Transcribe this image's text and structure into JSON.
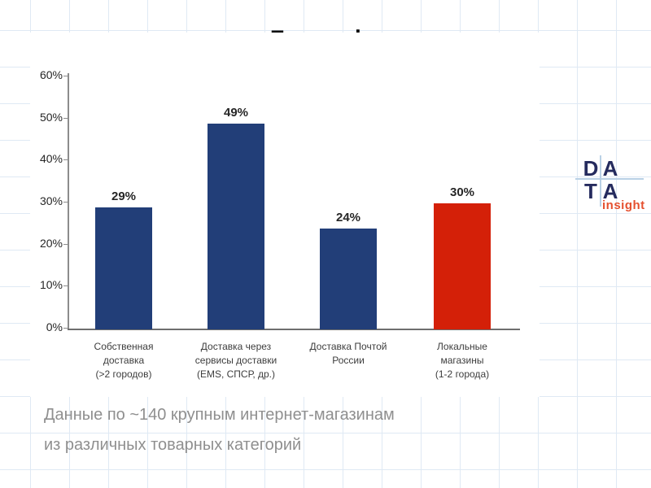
{
  "slide": {
    "title": "География доставки",
    "footer_line1": "Данные по ~140 крупным интернет-магазинам",
    "footer_line2": "из различных товарных категорий"
  },
  "logo": {
    "letters": [
      "D",
      "A",
      "T",
      "A"
    ],
    "word": "insight",
    "letter_color": "#252b5e",
    "word_color": "#e5502f",
    "cross_line_color": "#b9d1e6"
  },
  "chart_data": {
    "type": "bar",
    "title": "География доставки",
    "categories": [
      "Собственная доставка (>2 городов)",
      "Доставка через сервисы доставки (EMS, СПСР, др.)",
      "Доставка Почтой России",
      "Локальные магазины (1-2 города)"
    ],
    "category_lines": [
      [
        "Собственная",
        "доставка",
        "(>2 городов)"
      ],
      [
        "Доставка через",
        "сервисы доставки",
        "(EMS, СПСР, др.)"
      ],
      [
        "Доставка Почтой",
        "России"
      ],
      [
        "Локальные",
        "магазины",
        "(1-2 города)"
      ]
    ],
    "values": [
      29,
      49,
      24,
      30
    ],
    "value_labels": [
      "29%",
      "49%",
      "24%",
      "30%"
    ],
    "bar_colors": [
      "#223e78",
      "#223e78",
      "#223e78",
      "#d42008"
    ],
    "ylabel": "",
    "xlabel": "",
    "ylim": [
      0,
      60
    ],
    "ytick_labels": [
      "60%",
      "50%",
      "40%",
      "30%",
      "20%",
      "10%",
      "0%"
    ],
    "grid": false,
    "legend": null
  },
  "colors": {
    "bar_blue": "#223e78",
    "bar_red": "#d42008",
    "background_grid": "#dfe9f4",
    "axis": "#8c8c8c",
    "footer_text": "#8f8f8f",
    "title_text": "#000000"
  }
}
